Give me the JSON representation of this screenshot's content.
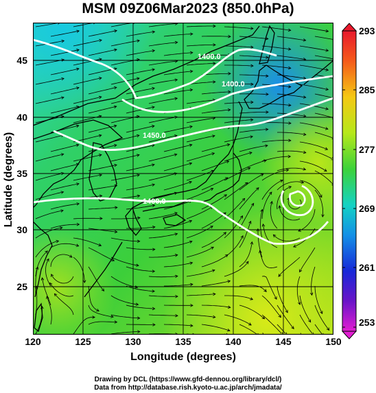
{
  "title": "MSM 09Z06Mar2023 (850.0hPa)",
  "xlabel": "Longitude (degrees)",
  "ylabel": "Latitude  (degrees)",
  "x_ticks": [
    "120",
    "125",
    "130",
    "135",
    "140",
    "145",
    "150"
  ],
  "y_ticks": [
    "45",
    "40",
    "35",
    "30",
    "25"
  ],
  "colorbar_ticks": [
    "293",
    "285",
    "277",
    "269",
    "261",
    "253"
  ],
  "contour_labels": [
    "1400.0",
    "1400.0",
    "1400.0",
    "1450.0"
  ],
  "credit_line1": "Drawing by DCL (https://www.gfd-dennou.org/library/dcl/)",
  "credit_line2": "Data from http://database.rish.kyoto-u.ac.jp/arch/jmadata/",
  "colors": {
    "warm": "#9ee61a",
    "mid": "#22d24a",
    "cool": "#16c9d8",
    "cold": "#1a8fe8"
  }
}
